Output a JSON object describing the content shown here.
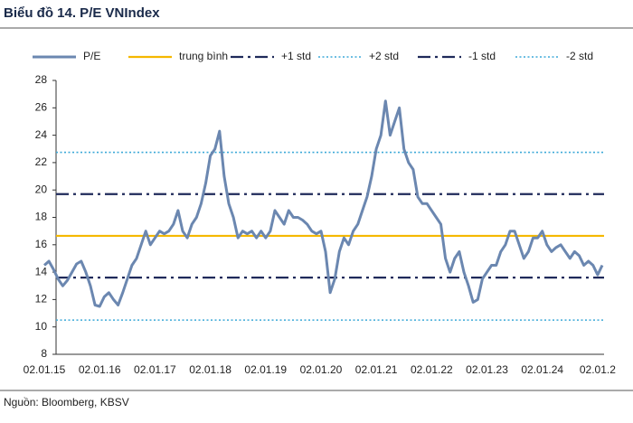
{
  "chart_data": {
    "type": "line",
    "title": "Biểu đồ 14. P/E VNIndex",
    "source": "Nguồn: Bloomberg, KBSV",
    "categories": [
      "02.01.15",
      null,
      null,
      null,
      null,
      null,
      null,
      null,
      null,
      null,
      null,
      null,
      "02.01.16",
      null,
      null,
      null,
      null,
      null,
      null,
      null,
      null,
      null,
      null,
      null,
      "02.01.17",
      null,
      null,
      null,
      null,
      null,
      null,
      null,
      null,
      null,
      null,
      null,
      "02.01.18",
      null,
      null,
      null,
      null,
      null,
      null,
      null,
      null,
      null,
      null,
      null,
      "02.01.19",
      null,
      null,
      null,
      null,
      null,
      null,
      null,
      null,
      null,
      null,
      null,
      "02.01.20",
      null,
      null,
      null,
      null,
      null,
      null,
      null,
      null,
      null,
      null,
      null,
      "02.01.21",
      null,
      null,
      null,
      null,
      null,
      null,
      null,
      null,
      null,
      null,
      null,
      "02.01.22",
      null,
      null,
      null,
      null,
      null,
      null,
      null,
      null,
      null,
      null,
      null,
      "02.01.23",
      null,
      null,
      null,
      null,
      null,
      null,
      null,
      null,
      null,
      null,
      null,
      "02.01.24",
      null,
      null,
      null,
      null,
      null,
      null,
      null,
      null,
      null,
      null,
      null,
      "02.01.2",
      null
    ],
    "series": [
      {
        "name": "P/E",
        "color": "#6b87b0",
        "style": "solid",
        "values": [
          14.5,
          14.8,
          14.2,
          13.5,
          13.0,
          13.4,
          14.0,
          14.6,
          14.8,
          14.0,
          13.0,
          11.6,
          11.5,
          12.2,
          12.5,
          12.0,
          11.6,
          12.5,
          13.5,
          14.5,
          15.0,
          16.0,
          17.0,
          16.0,
          16.5,
          17.0,
          16.8,
          17.0,
          17.5,
          18.5,
          17.0,
          16.5,
          17.5,
          18.0,
          19.0,
          20.5,
          22.5,
          23.0,
          24.3,
          21.0,
          19.0,
          18.0,
          16.5,
          17.0,
          16.8,
          17.0,
          16.5,
          17.0,
          16.5,
          17.0,
          18.5,
          18.0,
          17.5,
          18.5,
          18.0,
          18.0,
          17.8,
          17.5,
          17.0,
          16.8,
          17.0,
          15.5,
          12.5,
          13.5,
          15.5,
          16.5,
          16.0,
          17.0,
          17.5,
          18.5,
          19.5,
          21.0,
          23.0,
          24.0,
          26.5,
          24.0,
          25.0,
          26.0,
          23.0,
          22.0,
          21.5,
          19.5,
          19.0,
          19.0,
          18.5,
          18.0,
          17.5,
          15.0,
          14.0,
          15.0,
          15.5,
          14.0,
          13.0,
          11.8,
          12.0,
          13.5,
          14.0,
          14.5,
          14.5,
          15.5,
          16.0,
          17.0,
          17.0,
          16.0,
          15.0,
          15.5,
          16.5,
          16.5,
          17.0,
          16.0,
          15.5,
          15.8,
          16.0,
          15.5,
          15.0,
          15.5,
          15.2,
          14.5,
          14.8,
          14.5,
          13.8,
          14.5
        ]
      }
    ],
    "reference_lines": [
      {
        "name": "trung bình",
        "value": 16.65,
        "color": "#f5b800",
        "style": "solid"
      },
      {
        "name": "+1 std",
        "value": 19.7,
        "color": "#1f2a5a",
        "style": "dashdot"
      },
      {
        "name": "+2 std",
        "value": 22.75,
        "color": "#3da9d8",
        "style": "dotted"
      },
      {
        "name": "-1 std",
        "value": 13.6,
        "color": "#1f2a5a",
        "style": "dashdot"
      },
      {
        "name": "-2 std",
        "value": 10.5,
        "color": "#3da9d8",
        "style": "dotted"
      }
    ],
    "ylim": [
      8,
      28
    ],
    "yticks": [
      8,
      10,
      12,
      14,
      16,
      18,
      20,
      22,
      24,
      26,
      28
    ],
    "grid": false,
    "legend": "top"
  }
}
